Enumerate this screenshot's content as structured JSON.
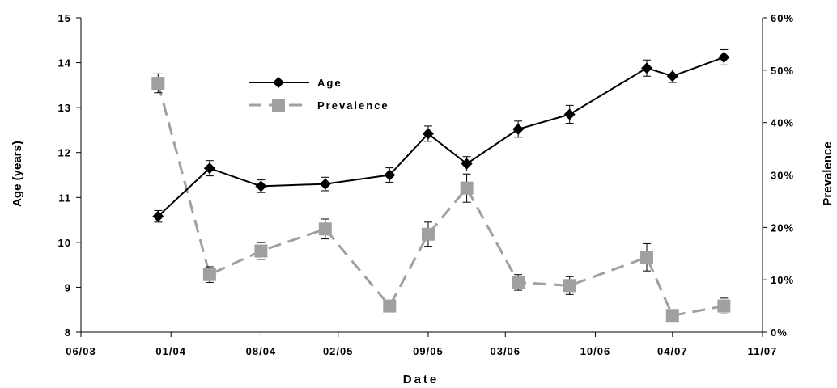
{
  "chart_data": {
    "type": "line",
    "xlabel": "Date",
    "ylabel": "Age (years)",
    "y2label": "Prevalence",
    "x_ticks": [
      "06/03",
      "01/04",
      "08/04",
      "02/05",
      "09/05",
      "03/06",
      "10/06",
      "04/07",
      "11/07"
    ],
    "xlim": [
      "06/03",
      "11/07"
    ],
    "ylim": [
      8,
      15
    ],
    "y_ticks": [
      "8",
      "9",
      "10",
      "11",
      "12",
      "13",
      "14",
      "15"
    ],
    "y2lim": [
      0,
      60
    ],
    "y2_ticks": [
      "0%",
      "10%",
      "20%",
      "30%",
      "40%",
      "50%",
      "60%"
    ],
    "legend_position": "top-left",
    "series": [
      {
        "name": "Age",
        "axis": "left",
        "color": "#000000",
        "line_style": "solid",
        "marker": "diamond",
        "points": [
          {
            "x": "12/03",
            "y": 10.58,
            "err": 0.13
          },
          {
            "x": "04/04",
            "y": 11.65,
            "err": 0.17
          },
          {
            "x": "08/04",
            "y": 11.25,
            "err": 0.14
          },
          {
            "x": "01/05",
            "y": 11.3,
            "err": 0.15
          },
          {
            "x": "06/05",
            "y": 11.5,
            "err": 0.16
          },
          {
            "x": "09/05",
            "y": 12.42,
            "err": 0.17
          },
          {
            "x": "12/05",
            "y": 11.75,
            "err": 0.16
          },
          {
            "x": "04/06",
            "y": 12.52,
            "err": 0.18
          },
          {
            "x": "08/06",
            "y": 12.85,
            "err": 0.2
          },
          {
            "x": "02/07",
            "y": 13.88,
            "err": 0.18
          },
          {
            "x": "04/07",
            "y": 13.7,
            "err": 0.14
          },
          {
            "x": "08/07",
            "y": 14.12,
            "err": 0.17
          }
        ]
      },
      {
        "name": "Prevalence",
        "axis": "right",
        "color": "#a0a0a0",
        "line_style": "dashed",
        "marker": "square",
        "points": [
          {
            "x": "12/03",
            "y": 47.5,
            "err": 1.8
          },
          {
            "x": "04/04",
            "y": 11.0,
            "err": 1.5
          },
          {
            "x": "08/04",
            "y": 15.5,
            "err": 1.6
          },
          {
            "x": "01/05",
            "y": 19.7,
            "err": 1.9
          },
          {
            "x": "06/05",
            "y": 5.0,
            "err": 0.9
          },
          {
            "x": "09/05",
            "y": 18.7,
            "err": 2.3
          },
          {
            "x": "12/05",
            "y": 27.5,
            "err": 2.7
          },
          {
            "x": "04/06",
            "y": 9.5,
            "err": 1.5
          },
          {
            "x": "08/06",
            "y": 8.9,
            "err": 1.7
          },
          {
            "x": "02/07",
            "y": 14.3,
            "err": 2.6
          },
          {
            "x": "04/07",
            "y": 3.2,
            "err": 1.0
          },
          {
            "x": "08/07",
            "y": 5.0,
            "err": 1.5
          }
        ]
      }
    ]
  }
}
